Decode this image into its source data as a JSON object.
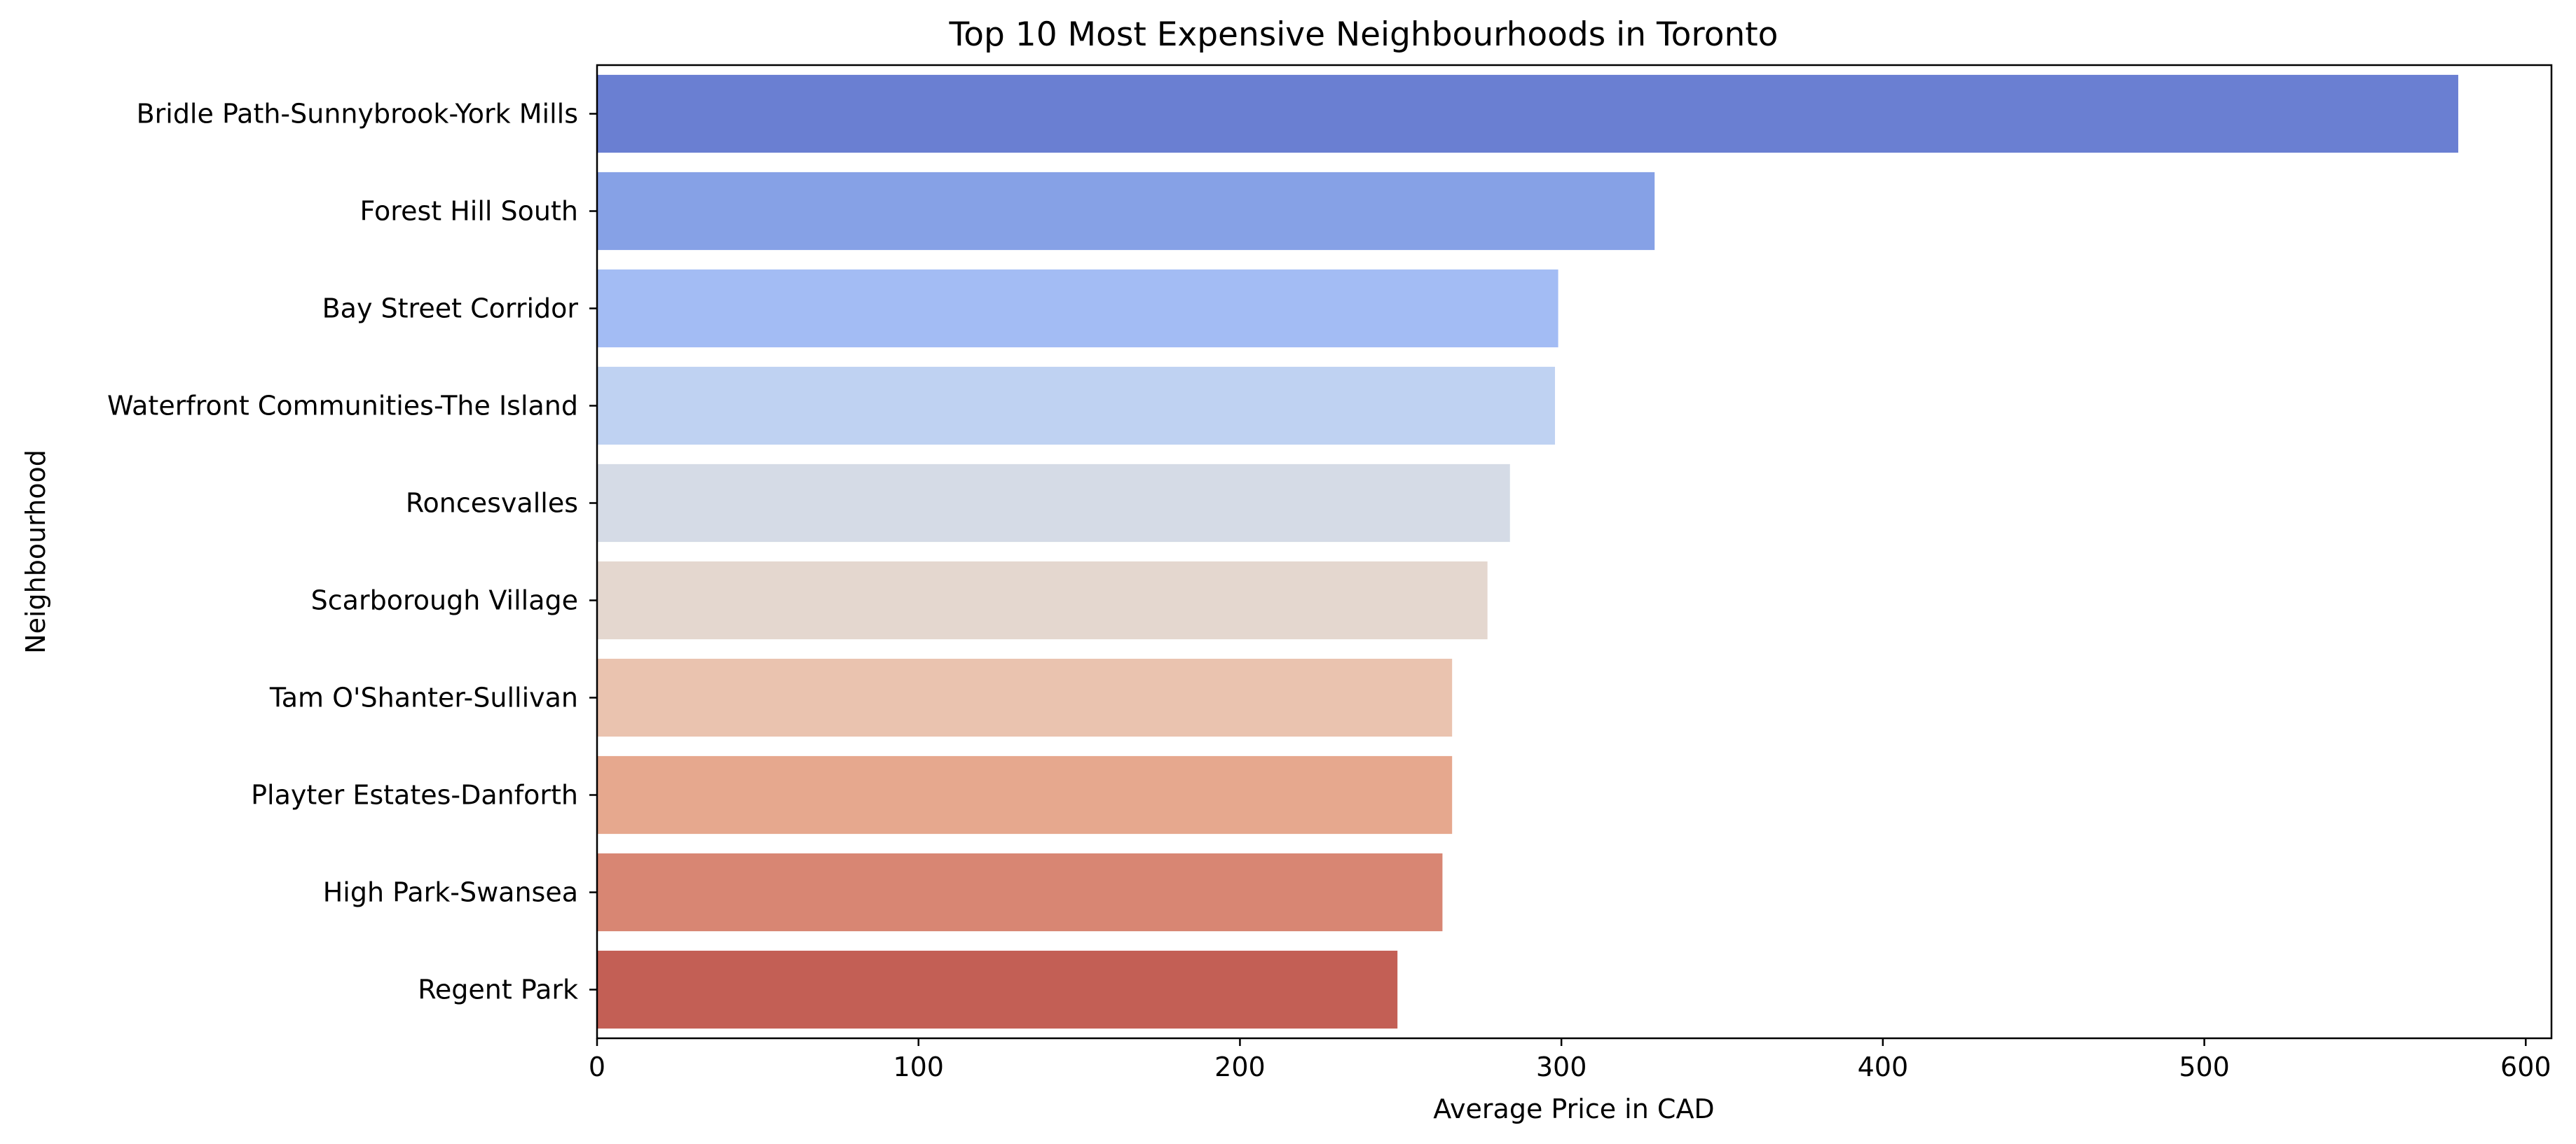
{
  "chart_data": {
    "type": "bar",
    "orientation": "horizontal",
    "title": "Top 10 Most Expensive Neighbourhoods in Toronto",
    "xlabel": "Average Price in CAD",
    "ylabel": "Neighbourhood",
    "categories": [
      "Bridle Path-Sunnybrook-York Mills",
      "Forest Hill South",
      "Bay Street Corridor",
      "Waterfront Communities-The Island",
      "Roncesvalles",
      "Scarborough Village",
      "Tam O'Shanter-Sullivan",
      "Playter Estates-Danforth",
      "High Park-Swansea",
      "Regent Park"
    ],
    "values": [
      579,
      329,
      299,
      298,
      284,
      277,
      266,
      266,
      263,
      249
    ],
    "colors": [
      "#6a7fd2",
      "#86a1e6",
      "#a3bcf4",
      "#bfd2f2",
      "#d5dbe6",
      "#e4d7cf",
      "#eac3af",
      "#e6a88e",
      "#d88673",
      "#c35f55"
    ],
    "xlim": [
      0,
      608
    ],
    "xticks": [
      0,
      100,
      200,
      300,
      400,
      500,
      600
    ],
    "grid": false,
    "legend": "none"
  }
}
